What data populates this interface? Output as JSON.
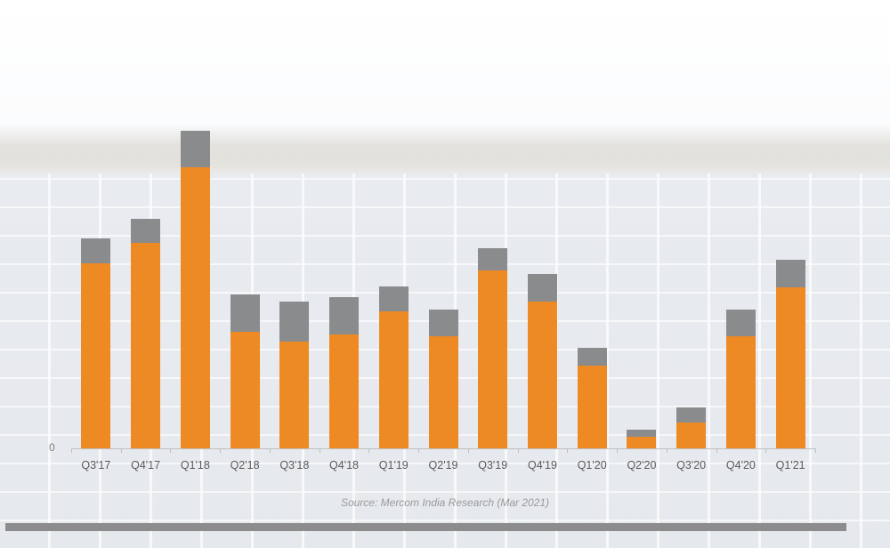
{
  "chart_data": {
    "type": "bar",
    "stacked": true,
    "title": "",
    "xlabel": "",
    "ylabel": "",
    "y_tick_labels": [
      "0"
    ],
    "value_units": "relative (px above baseline; no y-scale shown)",
    "categories": [
      "Q3'17",
      "Q4'17",
      "Q1'18",
      "Q2'18",
      "Q3'18",
      "Q4'18",
      "Q1'19",
      "Q2'19",
      "Q3'19",
      "Q4'19",
      "Q1'20",
      "Q2'20",
      "Q3'20",
      "Q4'20",
      "Q1'21"
    ],
    "series": [
      {
        "name": "Orange segment (lower)",
        "color": "#ee8a24",
        "values": [
          208,
          231,
          316,
          131,
          120,
          128,
          154,
          126,
          200,
          165,
          93,
          13,
          29,
          126,
          181
        ]
      },
      {
        "name": "Gray segment (upper)",
        "color": "#8a8b8d",
        "values": [
          28,
          27,
          41,
          42,
          45,
          42,
          28,
          30,
          25,
          31,
          20,
          8,
          17,
          30,
          31
        ]
      }
    ],
    "totals": [
      236,
      258,
      357,
      173,
      165,
      170,
      182,
      156,
      225,
      196,
      113,
      21,
      46,
      156,
      212
    ],
    "legend": null,
    "grid": false,
    "source": "Source: Mercom India Research (Mar 2021)"
  },
  "axis": {
    "zero_label": "0"
  },
  "footer": {
    "source": "Source: Mercom India Research (Mar 2021)"
  },
  "colors": {
    "orange": "#ee8a24",
    "gray": "#8a8b8d",
    "footer_bar": "#8c8c8e"
  }
}
